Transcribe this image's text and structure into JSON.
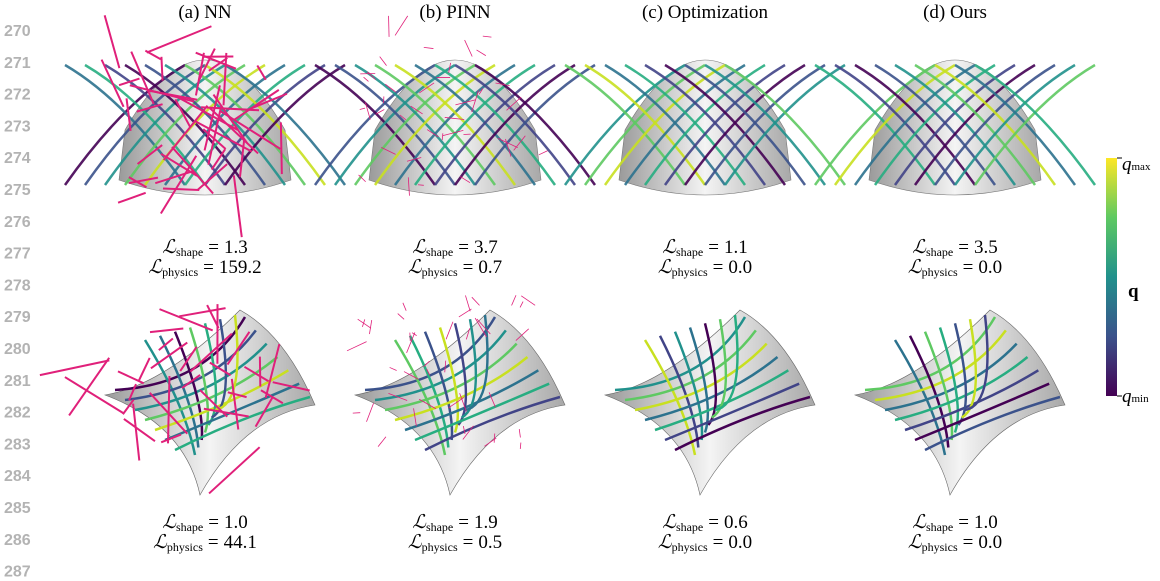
{
  "line_numbers": [
    270,
    271,
    272,
    273,
    274,
    275,
    276,
    277,
    278,
    279,
    280,
    281,
    282,
    283,
    284,
    285,
    286,
    287
  ],
  "loss_symbol": "ℒ",
  "shape_subscript": "shape",
  "physics_subscript": "physics",
  "equals": "=",
  "columns": [
    {
      "title": "(a) NN",
      "dome": {
        "shape": "1.3",
        "physics": "159.2"
      },
      "saddle": {
        "shape": "1.0",
        "physics": "44.1"
      }
    },
    {
      "title": "(b) PINN",
      "dome": {
        "shape": "3.7",
        "physics": "0.7"
      },
      "saddle": {
        "shape": "1.9",
        "physics": "0.5"
      }
    },
    {
      "title": "(c) Optimization",
      "dome": {
        "shape": "1.1",
        "physics": "0.0"
      },
      "saddle": {
        "shape": "0.6",
        "physics": "0.0"
      }
    },
    {
      "title": "(d) Ours",
      "dome": {
        "shape": "3.5",
        "physics": "0.0"
      },
      "saddle": {
        "shape": "1.0",
        "physics": "0.0"
      }
    }
  ],
  "colorbar": {
    "label": "q",
    "max_symbol": "q",
    "max_subscript": "max",
    "min_symbol": "q",
    "min_subscript": "min"
  }
}
